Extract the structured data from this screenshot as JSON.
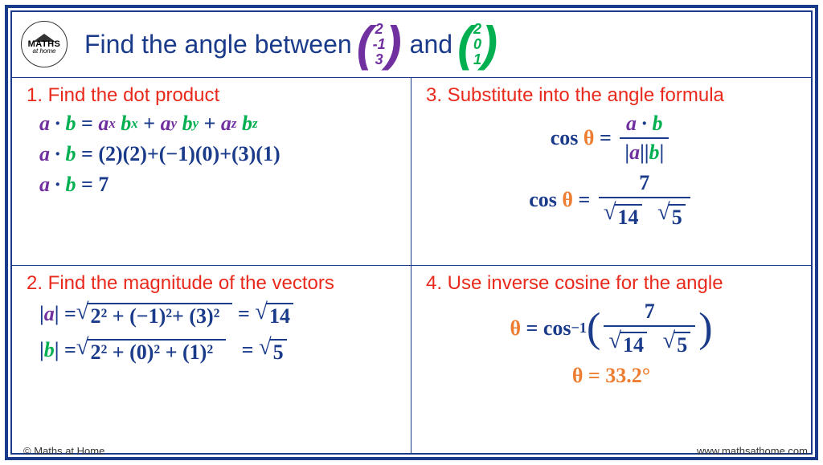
{
  "colors": {
    "frame": "#1a3a8a",
    "step_title": "#e8291c",
    "vector_a": "#7030a0",
    "vector_b": "#00b050",
    "theta": "#ed7d31",
    "math_text": "#1a3a8a"
  },
  "logo": {
    "line1": "MATHS",
    "line2": "at home"
  },
  "header": {
    "prefix": "Find the angle between",
    "vec_a": [
      "2",
      "-1",
      "3"
    ],
    "mid": "and",
    "vec_b": [
      "2",
      "0",
      "1"
    ]
  },
  "steps": {
    "s1": {
      "title": "1. Find the dot product",
      "line1_parts": {
        "lhs_a": "a",
        "dot": "∙",
        "lhs_b": "b",
        "eq": " = ",
        "ax": "a",
        "sx": "x",
        "bx": "b",
        "ay": "a",
        "sy": "y",
        "by": "b",
        "az": "a",
        "sz": "z",
        "bz": "b"
      },
      "line2": "= (2)(2)+(−1)(0)+(3)(1)",
      "line3_val": "= 7"
    },
    "s2": {
      "title": "2. Find the magnitude of the vectors",
      "a_body": "2² + (−1)²+ (3)²",
      "a_res": "14",
      "b_body": "2² + (0)² + (1)²",
      "b_res": "5"
    },
    "s3": {
      "title": "3. Substitute into the angle formula",
      "cos": "cos",
      "eq": " = ",
      "num_val": "7",
      "den_14": "14",
      "den_5": "5"
    },
    "s4": {
      "title": "4. Use inverse cosine for the angle",
      "cos": "cos",
      "inv": "−1",
      "num_val": "7",
      "den_14": "14",
      "den_5": "5",
      "result": "θ = 33.2°"
    }
  },
  "footer": {
    "left": "© Maths at Home",
    "right": "www.mathsathome.com"
  }
}
